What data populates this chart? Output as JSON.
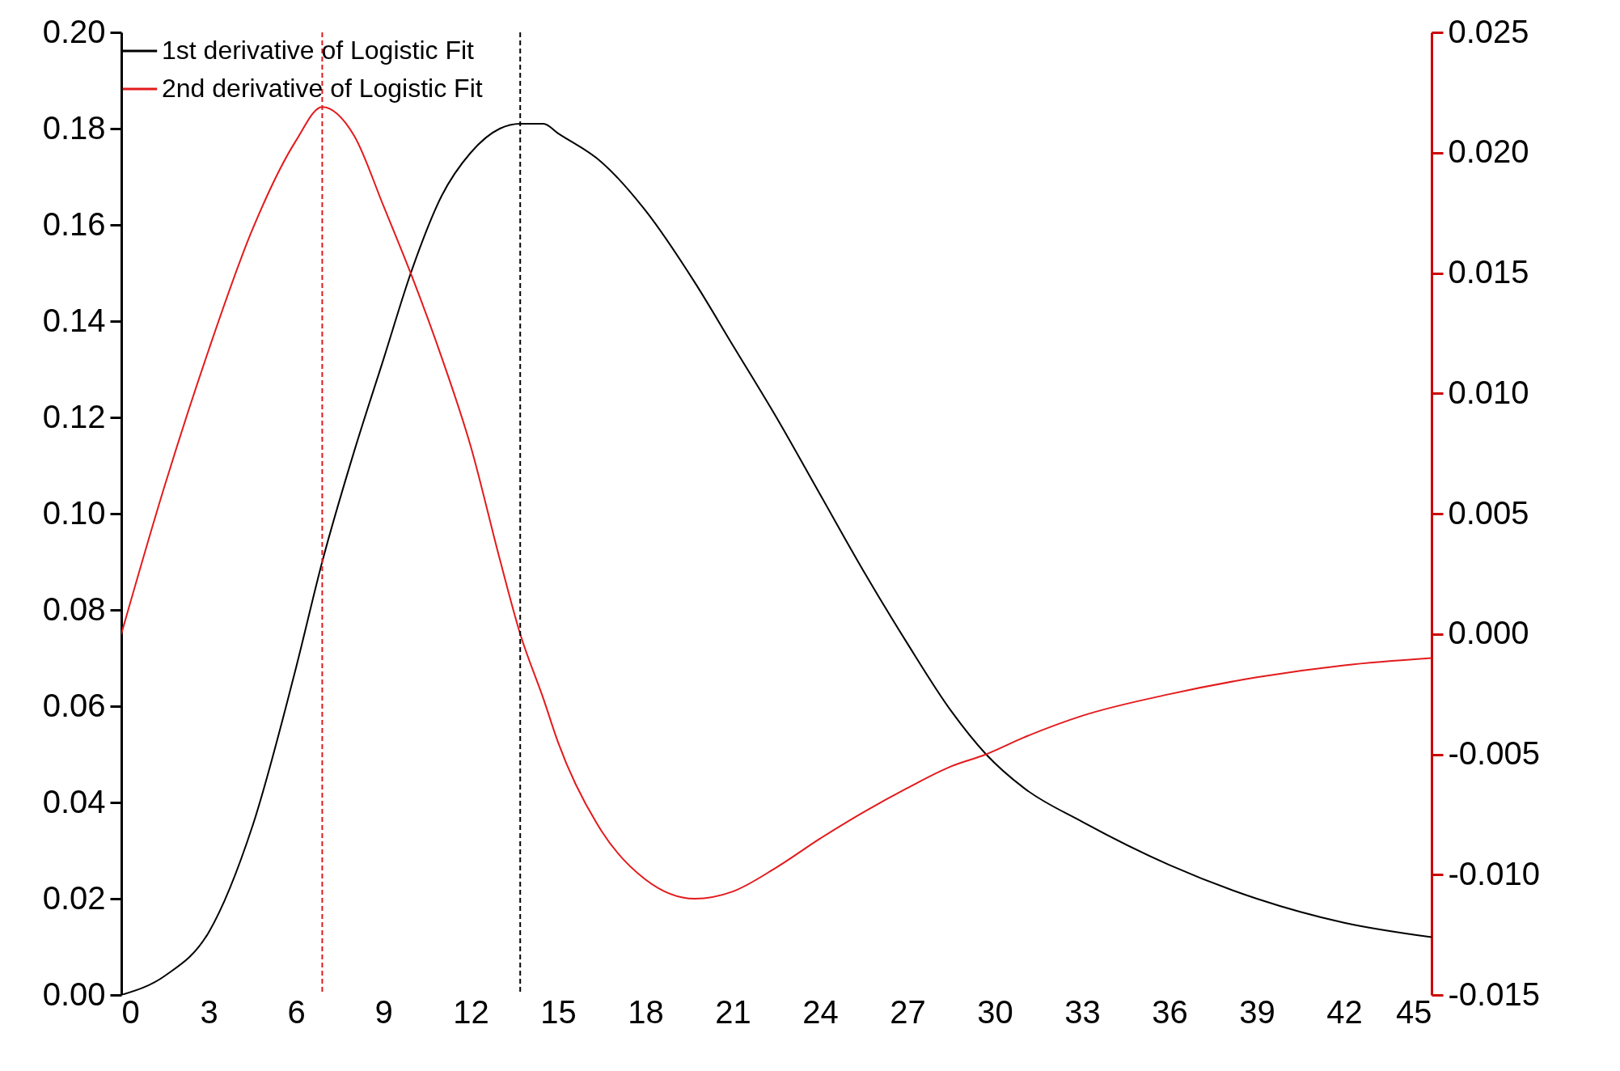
{
  "chart_data": {
    "type": "line",
    "x": [
      0,
      1.5,
      3,
      4.5,
      6,
      6.9,
      8,
      9,
      10,
      11,
      12,
      13,
      13.7,
      14.5,
      15,
      16.5,
      18,
      19.7,
      21,
      22.5,
      24,
      25.5,
      27,
      28.5,
      29.7,
      31,
      33,
      36,
      39,
      42,
      45
    ],
    "series": [
      {
        "name": "1st  derivative of Logistic Fit",
        "color": "#000000",
        "values": [
          0.0,
          0.004,
          0.013,
          0.035,
          0.068,
          0.09,
          0.113,
          0.132,
          0.151,
          0.166,
          0.175,
          0.18,
          0.181,
          0.181,
          0.179,
          0.173,
          0.163,
          0.148,
          0.135,
          0.12,
          0.104,
          0.088,
          0.073,
          0.059,
          0.05,
          0.043,
          0.036,
          0.027,
          0.02,
          0.015,
          0.012
        ]
      },
      {
        "name": "2nd derivative of Logistic Fit",
        "color": "#e31a1c",
        "axis": "y2",
        "values": [
          0.0,
          0.0062,
          0.0118,
          0.0168,
          0.0205,
          0.0219,
          0.0207,
          0.0178,
          0.0148,
          0.0115,
          0.0078,
          0.0031,
          0.0,
          -0.0027,
          -0.0045,
          -0.0082,
          -0.0102,
          -0.011,
          -0.0107,
          -0.0097,
          -0.0085,
          -0.0074,
          -0.0064,
          -0.0055,
          -0.005,
          -0.0043,
          -0.0034,
          -0.0025,
          -0.0018,
          -0.0013,
          -0.001
        ]
      }
    ],
    "xlim": [
      0,
      45
    ],
    "xticks": [
      0,
      3,
      6,
      9,
      12,
      15,
      18,
      21,
      24,
      27,
      30,
      33,
      36,
      39,
      42,
      45
    ],
    "ylim": [
      0,
      0.2
    ],
    "yticks": [
      {
        "value": 0,
        "label": "0.00"
      },
      0.02,
      0.04,
      0.06,
      0.08,
      {
        "value": 0.1,
        "label": "0.10"
      },
      0.12,
      0.14,
      0.16,
      0.18,
      {
        "value": 0.2,
        "label": "0.20"
      }
    ],
    "y2lim": [
      -0.015,
      0.025
    ],
    "y2ticks": [
      -0.015,
      {
        "value": -0.01,
        "label": "-0.010"
      },
      -0.005,
      {
        "value": 0,
        "label": "0.000"
      },
      0.005,
      {
        "value": 0.01,
        "label": "0.010"
      },
      0.015,
      {
        "value": 0.02,
        "label": "0.020"
      },
      0.025
    ],
    "ref_lines": [
      {
        "axis": "x",
        "value": 6.9,
        "color": "#e31a1c",
        "line_style": "dashed"
      },
      {
        "axis": "x",
        "value": 13.7,
        "color": "#000000",
        "line_style": "dashed"
      }
    ],
    "legend": "top left",
    "grid": false
  }
}
